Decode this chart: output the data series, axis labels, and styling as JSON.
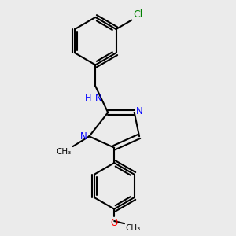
{
  "bg_color": "#ebebeb",
  "bond_color": "#000000",
  "n_color": "#0000ff",
  "cl_color": "#008000",
  "o_color": "#ff0000",
  "line_width": 1.5,
  "font_size": 8.5,
  "fig_size": [
    3.0,
    3.0
  ],
  "dpi": 100,
  "xlim": [
    0.1,
    0.9
  ],
  "ylim": [
    0.05,
    0.97
  ]
}
